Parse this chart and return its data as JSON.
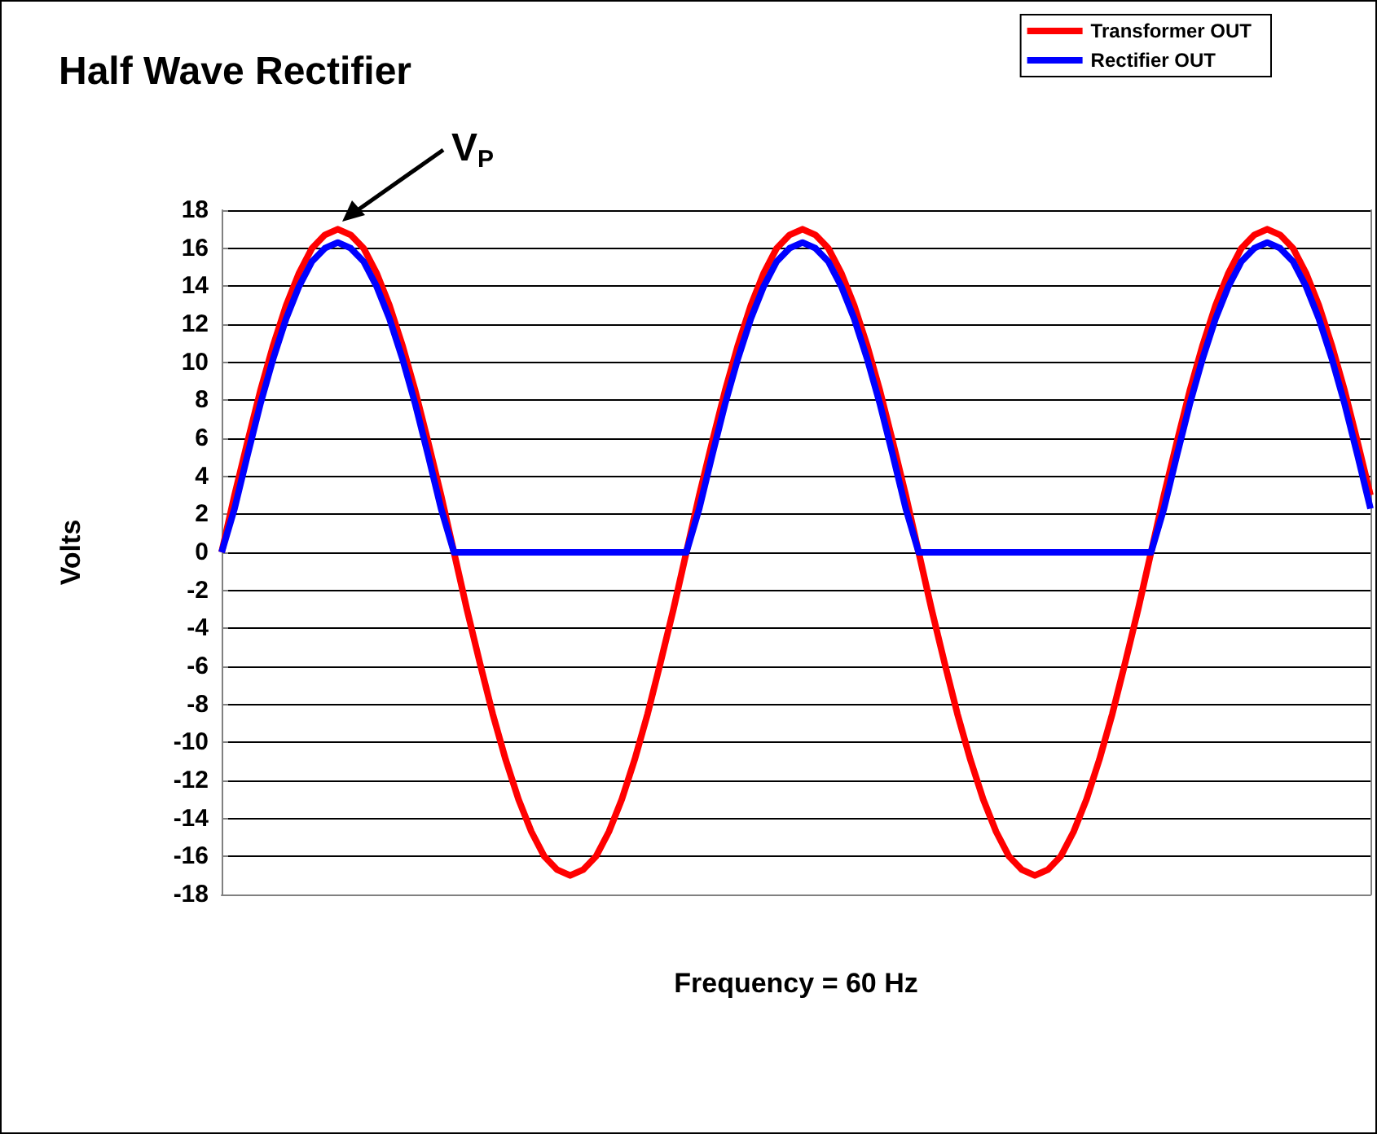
{
  "chart_data": {
    "type": "line",
    "title": "Half Wave Rectifier",
    "xlabel": "Frequency = 60 Hz",
    "ylabel": "Volts",
    "annotations": [
      "V$_{P}$"
    ],
    "categories": [
      null,
      null,
      null,
      null,
      null,
      null,
      null,
      null,
      null,
      null,
      null,
      null,
      null,
      null,
      null,
      null,
      null,
      null,
      null,
      null,
      null,
      null,
      null,
      null,
      null,
      null,
      null,
      null,
      null,
      null,
      null,
      null,
      null,
      null,
      null,
      null,
      null,
      null,
      null,
      null,
      null,
      null,
      null,
      null,
      null,
      null,
      null,
      null,
      null,
      null,
      null,
      null,
      null,
      null,
      null,
      null,
      null,
      null,
      null,
      null,
      null,
      null,
      null,
      null,
      null,
      null,
      null,
      null,
      null,
      null,
      null,
      null,
      null,
      null,
      null,
      null,
      null,
      null,
      null,
      null,
      null,
      null,
      null,
      null,
      null,
      null,
      null,
      null,
      null,
      null
    ],
    "series": [
      {
        "name": "Transformer OUT",
        "color": "#ff0000",
        "values": [
          0,
          3.0,
          5.8,
          8.5,
          10.9,
          13.0,
          14.7,
          16.0,
          16.7,
          17.0,
          16.7,
          16.0,
          14.7,
          13.0,
          10.9,
          8.5,
          5.8,
          3.0,
          0,
          -3.0,
          -5.8,
          -8.5,
          -10.9,
          -13.0,
          -14.7,
          -16.0,
          -16.7,
          -17.0,
          -16.7,
          -16.0,
          -14.7,
          -13.0,
          -10.9,
          -8.5,
          -5.8,
          -3.0,
          0,
          3.0,
          5.8,
          8.5,
          10.9,
          13.0,
          14.7,
          16.0,
          16.7,
          17.0,
          16.7,
          16.0,
          14.7,
          13.0,
          10.9,
          8.5,
          5.8,
          3.0,
          0,
          -3.0,
          -5.8,
          -8.5,
          -10.9,
          -13.0,
          -14.7,
          -16.0,
          -16.7,
          -17.0,
          -16.7,
          -16.0,
          -14.7,
          -13.0,
          -10.9,
          -8.5,
          -5.8,
          -3.0,
          0,
          3.0,
          5.8,
          8.5,
          10.9,
          13.0,
          14.7,
          16.0,
          16.7,
          17.0,
          16.7,
          16.0,
          14.7,
          13.0,
          10.9,
          8.5,
          5.8,
          3.0
        ]
      },
      {
        "name": "Rectifier OUT",
        "color": "#0000ff",
        "values": [
          0,
          2.3,
          5.1,
          7.8,
          10.2,
          12.3,
          14.0,
          15.3,
          16.0,
          16.3,
          16.0,
          15.3,
          14.0,
          12.3,
          10.2,
          7.8,
          5.1,
          2.3,
          0,
          0,
          0,
          0,
          0,
          0,
          0,
          0,
          0,
          0,
          0,
          0,
          0,
          0,
          0,
          0,
          0,
          0,
          0,
          2.3,
          5.1,
          7.8,
          10.2,
          12.3,
          14.0,
          15.3,
          16.0,
          16.3,
          16.0,
          15.3,
          14.0,
          12.3,
          10.2,
          7.8,
          5.1,
          2.3,
          0,
          0,
          0,
          0,
          0,
          0,
          0,
          0,
          0,
          0,
          0,
          0,
          0,
          0,
          0,
          0,
          0,
          0,
          0,
          2.3,
          5.1,
          7.8,
          10.2,
          12.3,
          14.0,
          15.3,
          16.0,
          16.3,
          16.0,
          15.3,
          14.0,
          12.3,
          10.2,
          7.8,
          5.1,
          2.3
        ]
      }
    ],
    "ylim": [
      -18,
      18
    ],
    "yticks": [
      -18,
      -16,
      -14,
      -12,
      -10,
      -8,
      -6,
      -4,
      -2,
      0,
      2,
      4,
      6,
      8,
      10,
      12,
      14,
      16,
      18
    ],
    "grid": "y",
    "legend": "top right",
    "marker": "none",
    "line_style": "solid"
  }
}
